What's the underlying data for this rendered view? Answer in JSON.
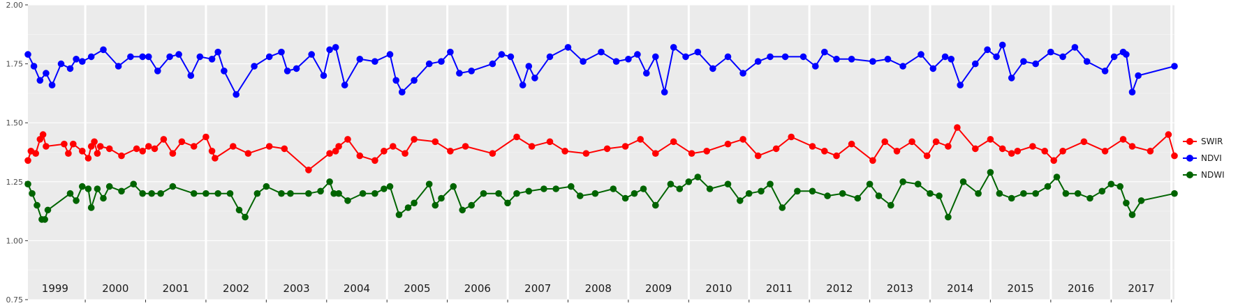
{
  "chart_data": {
    "type": "line",
    "title": "",
    "xlabel": "",
    "ylabel": "",
    "ylim": [
      0.75,
      2.0
    ],
    "xlim": [
      1998.55,
      2017.55
    ],
    "y_ticks": [
      "0.75",
      "1.00",
      "1.25",
      "1.50",
      "1.75",
      "2.00"
    ],
    "year_labels": [
      "1999",
      "2000",
      "2001",
      "2002",
      "2003",
      "2004",
      "2005",
      "2006",
      "2007",
      "2008",
      "2009",
      "2010",
      "2011",
      "2012",
      "2013",
      "2014",
      "2015",
      "2016",
      "2017"
    ],
    "grid": true,
    "legend_position": "right",
    "series": [
      {
        "name": "SWIR",
        "color": "#ff0000",
        "x": [
          1998.55,
          1998.6,
          1998.68,
          1998.75,
          1998.8,
          1998.85,
          1999.15,
          1999.22,
          1999.3,
          1999.45,
          1999.55,
          1999.6,
          1999.65,
          1999.7,
          1999.75,
          1999.9,
          2000.1,
          2000.35,
          2000.45,
          2000.55,
          2000.65,
          2000.8,
          2000.95,
          2001.1,
          2001.3,
          2001.5,
          2001.6,
          2001.65,
          2001.95,
          2002.2,
          2002.55,
          2002.8,
          2003.2,
          2003.55,
          2003.65,
          2003.7,
          2003.85,
          2004.05,
          2004.3,
          2004.45,
          2004.6,
          2004.8,
          2004.95,
          2005.3,
          2005.55,
          2005.8,
          2006.25,
          2006.65,
          2006.9,
          2007.2,
          2007.45,
          2007.8,
          2008.15,
          2008.45,
          2008.7,
          2008.95,
          2009.25,
          2009.55,
          2009.8,
          2010.15,
          2010.4,
          2010.65,
          2010.95,
          2011.2,
          2011.55,
          2011.75,
          2011.95,
          2012.2,
          2012.55,
          2012.75,
          2012.95,
          2013.2,
          2013.45,
          2013.6,
          2013.8,
          2013.95,
          2014.25,
          2014.5,
          2014.7,
          2014.85,
          2014.95,
          2015.2,
          2015.4,
          2015.55,
          2015.7,
          2016.05,
          2016.4,
          2016.7,
          2016.85,
          2017.15,
          2017.45,
          2017.55
        ],
        "values": [
          1.34,
          1.38,
          1.37,
          1.43,
          1.45,
          1.4,
          1.41,
          1.37,
          1.41,
          1.38,
          1.35,
          1.4,
          1.42,
          1.37,
          1.4,
          1.39,
          1.36,
          1.39,
          1.38,
          1.4,
          1.39,
          1.43,
          1.37,
          1.42,
          1.4,
          1.44,
          1.38,
          1.35,
          1.4,
          1.37,
          1.4,
          1.39,
          1.3,
          1.37,
          1.38,
          1.4,
          1.43,
          1.36,
          1.34,
          1.38,
          1.4,
          1.37,
          1.43,
          1.42,
          1.38,
          1.4,
          1.37,
          1.44,
          1.4,
          1.42,
          1.38,
          1.37,
          1.39,
          1.4,
          1.43,
          1.37,
          1.42,
          1.37,
          1.38,
          1.41,
          1.43,
          1.36,
          1.39,
          1.44,
          1.4,
          1.38,
          1.36,
          1.41,
          1.34,
          1.42,
          1.38,
          1.42,
          1.36,
          1.42,
          1.4,
          1.48,
          1.39,
          1.43,
          1.39,
          1.37,
          1.38,
          1.4,
          1.38,
          1.34,
          1.38,
          1.42,
          1.38,
          1.43,
          1.4,
          1.38,
          1.45,
          1.36
        ]
      },
      {
        "name": "NDVI",
        "color": "#0000ff",
        "x": [
          1998.55,
          1998.65,
          1998.75,
          1998.85,
          1998.95,
          1999.1,
          1999.25,
          1999.35,
          1999.45,
          1999.6,
          1999.8,
          2000.05,
          2000.25,
          2000.45,
          2000.55,
          2000.7,
          2000.9,
          2001.05,
          2001.25,
          2001.4,
          2001.6,
          2001.7,
          2001.8,
          2002.0,
          2002.3,
          2002.55,
          2002.75,
          2002.85,
          2003.0,
          2003.25,
          2003.45,
          2003.55,
          2003.65,
          2003.8,
          2004.05,
          2004.3,
          2004.55,
          2004.65,
          2004.75,
          2004.95,
          2005.2,
          2005.4,
          2005.55,
          2005.7,
          2005.9,
          2006.25,
          2006.4,
          2006.55,
          2006.75,
          2006.85,
          2006.95,
          2007.2,
          2007.5,
          2007.75,
          2008.05,
          2008.3,
          2008.5,
          2008.65,
          2008.8,
          2008.95,
          2009.1,
          2009.25,
          2009.45,
          2009.65,
          2009.9,
          2010.15,
          2010.4,
          2010.65,
          2010.85,
          2011.1,
          2011.4,
          2011.6,
          2011.75,
          2011.95,
          2012.2,
          2012.55,
          2012.8,
          2013.05,
          2013.35,
          2013.55,
          2013.75,
          2013.85,
          2014.0,
          2014.25,
          2014.45,
          2014.6,
          2014.7,
          2014.85,
          2015.05,
          2015.25,
          2015.5,
          2015.7,
          2015.9,
          2016.1,
          2016.4,
          2016.55,
          2016.7,
          2016.75,
          2016.85,
          2016.95,
          2017.55
        ],
        "values": [
          1.79,
          1.74,
          1.68,
          1.71,
          1.66,
          1.75,
          1.73,
          1.77,
          1.76,
          1.78,
          1.81,
          1.74,
          1.78,
          1.78,
          1.78,
          1.72,
          1.78,
          1.79,
          1.7,
          1.78,
          1.77,
          1.8,
          1.72,
          1.62,
          1.74,
          1.78,
          1.8,
          1.72,
          1.73,
          1.79,
          1.7,
          1.81,
          1.82,
          1.66,
          1.77,
          1.76,
          1.79,
          1.68,
          1.63,
          1.68,
          1.75,
          1.76,
          1.8,
          1.71,
          1.72,
          1.75,
          1.79,
          1.78,
          1.66,
          1.74,
          1.69,
          1.78,
          1.82,
          1.76,
          1.8,
          1.76,
          1.77,
          1.79,
          1.71,
          1.78,
          1.63,
          1.82,
          1.78,
          1.8,
          1.73,
          1.78,
          1.71,
          1.76,
          1.78,
          1.78,
          1.78,
          1.74,
          1.8,
          1.77,
          1.77,
          1.76,
          1.77,
          1.74,
          1.79,
          1.73,
          1.78,
          1.77,
          1.66,
          1.75,
          1.81,
          1.78,
          1.83,
          1.69,
          1.76,
          1.75,
          1.8,
          1.78,
          1.82,
          1.76,
          1.72,
          1.78,
          1.8,
          1.79,
          1.63,
          1.7,
          1.74
        ]
      },
      {
        "name": "NDWI",
        "color": "#006400",
        "x": [
          1998.55,
          1998.62,
          1998.7,
          1998.78,
          1998.83,
          1998.88,
          1999.25,
          1999.35,
          1999.45,
          1999.55,
          1999.6,
          1999.7,
          1999.8,
          1999.9,
          2000.1,
          2000.3,
          2000.45,
          2000.6,
          2000.75,
          2000.95,
          2001.3,
          2001.5,
          2001.7,
          2001.9,
          2002.05,
          2002.15,
          2002.35,
          2002.5,
          2002.75,
          2002.9,
          2003.2,
          2003.4,
          2003.55,
          2003.62,
          2003.7,
          2003.85,
          2004.1,
          2004.3,
          2004.45,
          2004.55,
          2004.7,
          2004.85,
          2004.95,
          2005.2,
          2005.3,
          2005.4,
          2005.6,
          2005.75,
          2005.9,
          2006.1,
          2006.35,
          2006.5,
          2006.65,
          2006.85,
          2007.1,
          2007.3,
          2007.55,
          2007.7,
          2007.95,
          2008.25,
          2008.45,
          2008.6,
          2008.75,
          2008.95,
          2009.2,
          2009.35,
          2009.5,
          2009.65,
          2009.85,
          2010.15,
          2010.35,
          2010.5,
          2010.7,
          2010.85,
          2011.05,
          2011.3,
          2011.55,
          2011.8,
          2012.05,
          2012.3,
          2012.5,
          2012.65,
          2012.85,
          2013.05,
          2013.3,
          2013.5,
          2013.65,
          2013.8,
          2014.05,
          2014.3,
          2014.5,
          2014.65,
          2014.85,
          2015.05,
          2015.25,
          2015.45,
          2015.6,
          2015.75,
          2015.95,
          2016.15,
          2016.35,
          2016.5,
          2016.65,
          2016.75,
          2016.85,
          2017.0,
          2017.55
        ],
        "values": [
          1.24,
          1.2,
          1.15,
          1.09,
          1.09,
          1.13,
          1.2,
          1.17,
          1.23,
          1.22,
          1.14,
          1.22,
          1.18,
          1.23,
          1.21,
          1.24,
          1.2,
          1.2,
          1.2,
          1.23,
          1.2,
          1.2,
          1.2,
          1.2,
          1.13,
          1.1,
          1.2,
          1.23,
          1.2,
          1.2,
          1.2,
          1.21,
          1.25,
          1.2,
          1.2,
          1.17,
          1.2,
          1.2,
          1.22,
          1.23,
          1.11,
          1.14,
          1.16,
          1.24,
          1.15,
          1.18,
          1.23,
          1.13,
          1.15,
          1.2,
          1.2,
          1.16,
          1.2,
          1.21,
          1.22,
          1.22,
          1.23,
          1.19,
          1.2,
          1.22,
          1.18,
          1.2,
          1.22,
          1.15,
          1.24,
          1.22,
          1.25,
          1.27,
          1.22,
          1.24,
          1.17,
          1.2,
          1.21,
          1.24,
          1.14,
          1.21,
          1.21,
          1.19,
          1.2,
          1.18,
          1.24,
          1.19,
          1.15,
          1.25,
          1.24,
          1.2,
          1.19,
          1.1,
          1.25,
          1.2,
          1.29,
          1.2,
          1.18,
          1.2,
          1.2,
          1.23,
          1.27,
          1.2,
          1.2,
          1.18,
          1.21,
          1.24,
          1.23,
          1.16,
          1.11,
          1.17,
          1.2
        ]
      }
    ]
  }
}
